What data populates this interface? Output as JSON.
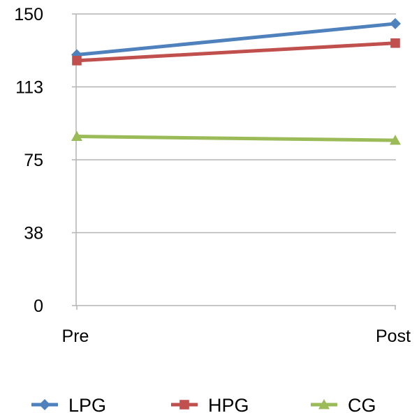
{
  "chart_data": {
    "type": "line",
    "categories": [
      "Pre",
      "Post"
    ],
    "series": [
      {
        "name": "LPG",
        "values": [
          129,
          145
        ],
        "color": "#4f81bd",
        "marker": "diamond"
      },
      {
        "name": "HPG",
        "values": [
          126,
          135
        ],
        "color": "#c0504d",
        "marker": "square"
      },
      {
        "name": "CG",
        "values": [
          87,
          85
        ],
        "color": "#9bbb59",
        "marker": "triangle"
      }
    ],
    "yticks": [
      "0",
      "38",
      "75",
      "113",
      "150"
    ],
    "ylim": [
      0,
      150
    ],
    "grid": true,
    "legend_position": "bottom"
  }
}
